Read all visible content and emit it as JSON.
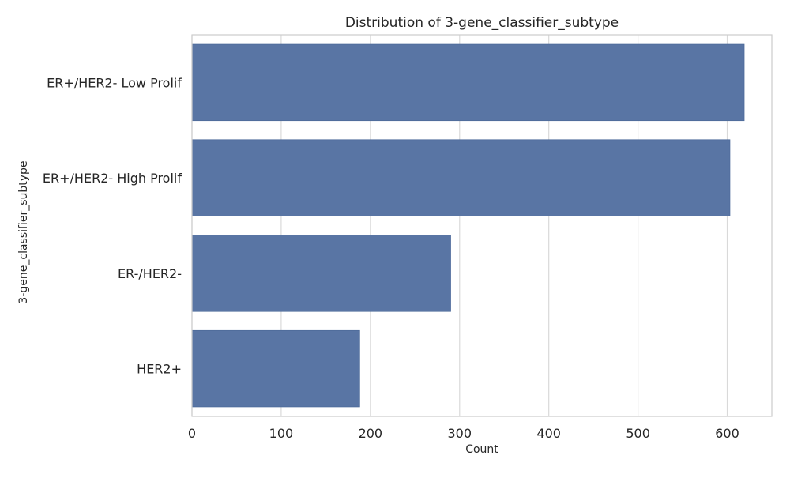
{
  "chart_data": {
    "type": "bar",
    "orientation": "horizontal",
    "title": "Distribution of 3-gene_classifier_subtype",
    "xlabel": "Count",
    "ylabel": "3-gene_classifier_subtype",
    "categories": [
      "ER+/HER2- Low Prolif",
      "ER+/HER2- High Prolif",
      "ER-/HER2-",
      "HER2+"
    ],
    "values": [
      619,
      603,
      290,
      188
    ],
    "xlim": [
      0,
      650
    ],
    "xticks": [
      0,
      100,
      200,
      300,
      400,
      500,
      600
    ],
    "grid": true,
    "colors": {
      "bar": "#5975a4",
      "grid": "#d9d9d9",
      "axis": "#cccccc",
      "text": "#262626"
    }
  }
}
